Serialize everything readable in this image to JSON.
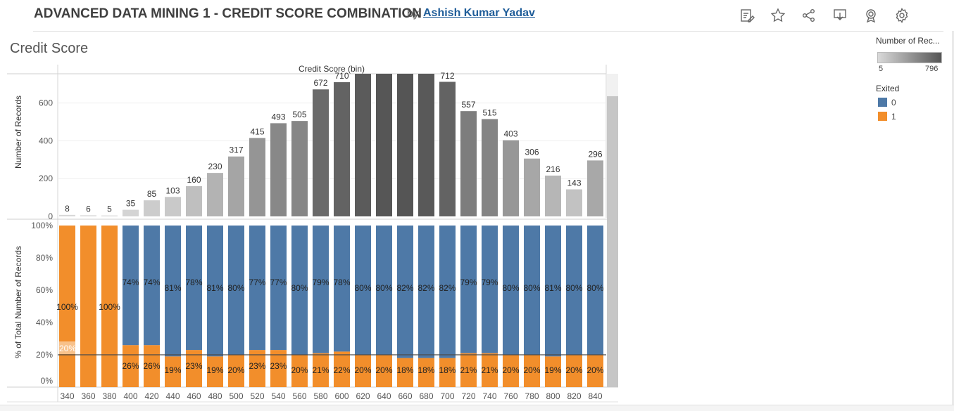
{
  "header": {
    "title": "ADVANCED DATA MINING 1 - CREDIT SCORE COMBINATION",
    "by": "by",
    "author": "Ashish Kumar Yadav"
  },
  "toolbar": {
    "icons": [
      "edit-icon",
      "star-icon",
      "share-icon",
      "download-icon",
      "badge-icon",
      "settings-icon"
    ]
  },
  "sheet": {
    "title": "Credit Score"
  },
  "legend": {
    "count_title": "Number of Rec...",
    "count_min": "5",
    "count_max": "796",
    "count_colors": [
      "#d9d9d9",
      "#555555"
    ],
    "exited_title": "Exited",
    "exited_items": [
      {
        "label": "0",
        "color": "#4e79a7"
      },
      {
        "label": "1",
        "color": "#f28e2b"
      }
    ]
  },
  "chart_data": {
    "type": "bar",
    "header_label": "Credit Score (bin)",
    "categories": [
      "340",
      "360",
      "380",
      "400",
      "420",
      "440",
      "460",
      "480",
      "500",
      "520",
      "540",
      "560",
      "580",
      "600",
      "620",
      "640",
      "660",
      "680",
      "700",
      "720",
      "740",
      "760",
      "780",
      "800",
      "820",
      "840"
    ],
    "top": {
      "ylabel": "Number of Records",
      "yticks": [
        "0",
        "200",
        "400",
        "600"
      ],
      "ylim": [
        0,
        760
      ],
      "values": [
        8,
        6,
        5,
        35,
        85,
        103,
        160,
        230,
        317,
        415,
        493,
        505,
        672,
        710,
        null,
        null,
        null,
        null,
        712,
        557,
        515,
        403,
        306,
        216,
        143,
        296
      ],
      "labels": [
        "8",
        "6",
        "5",
        "35",
        "85",
        "103",
        "160",
        "230",
        "317",
        "415",
        "493",
        "505",
        "672",
        "710",
        "",
        "",
        "",
        "",
        "712",
        "557",
        "515",
        "403",
        "306",
        "216",
        "143",
        "296"
      ],
      "display_heights": [
        8,
        6,
        5,
        35,
        85,
        103,
        160,
        230,
        317,
        415,
        493,
        505,
        672,
        710,
        760,
        760,
        760,
        760,
        712,
        557,
        515,
        403,
        306,
        216,
        143,
        296
      ],
      "color_values": [
        8,
        6,
        5,
        35,
        85,
        103,
        160,
        230,
        317,
        415,
        493,
        505,
        672,
        710,
        760,
        790,
        796,
        770,
        712,
        557,
        515,
        403,
        306,
        216,
        143,
        296
      ]
    },
    "bottom": {
      "ylabel": "% of Total Number of Records",
      "yticks": [
        "0%",
        "20%",
        "40%",
        "60%",
        "80%",
        "100%"
      ],
      "ylim": [
        0,
        100
      ],
      "series": [
        {
          "name": "0",
          "color": "#4e79a7",
          "values": [
            0,
            0,
            0,
            74,
            74,
            81,
            78,
            81,
            80,
            77,
            77,
            80,
            79,
            78,
            80,
            80,
            82,
            82,
            82,
            79,
            79,
            80,
            80,
            81,
            80,
            80
          ],
          "labels": [
            "",
            "",
            "",
            "74%",
            "74%",
            "81%",
            "78%",
            "81%",
            "80%",
            "77%",
            "77%",
            "80%",
            "79%",
            "78%",
            "80%",
            "80%",
            "82%",
            "82%",
            "82%",
            "79%",
            "79%",
            "80%",
            "80%",
            "81%",
            "80%",
            "80%"
          ]
        },
        {
          "name": "1",
          "color": "#f28e2b",
          "values": [
            100,
            100,
            100,
            26,
            26,
            19,
            23,
            19,
            20,
            23,
            23,
            20,
            21,
            22,
            20,
            20,
            18,
            18,
            18,
            21,
            21,
            20,
            20,
            19,
            20,
            20
          ],
          "labels": [
            "100%",
            "",
            "100%",
            "26%",
            "26%",
            "19%",
            "23%",
            "19%",
            "20%",
            "23%",
            "23%",
            "20%",
            "21%",
            "22%",
            "20%",
            "20%",
            "18%",
            "18%",
            "18%",
            "21%",
            "21%",
            "20%",
            "20%",
            "19%",
            "20%",
            "20%"
          ]
        }
      ],
      "reference_line": 20,
      "reference_label": "20%"
    }
  }
}
